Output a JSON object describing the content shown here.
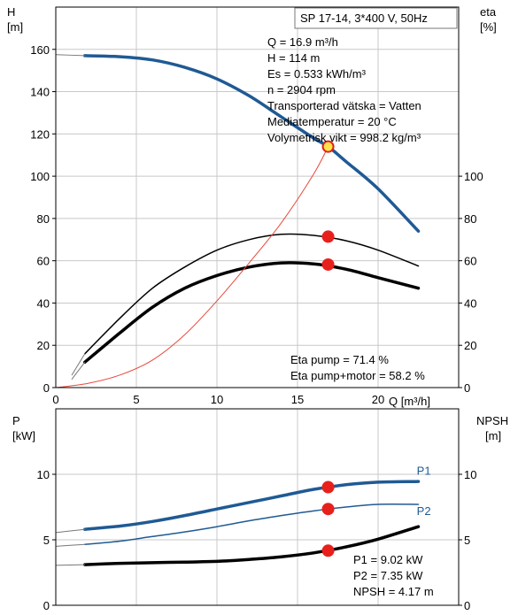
{
  "chart_data": [
    {
      "type": "line",
      "title": "SP 17-14, 3*400 V, 50Hz",
      "left_axis": {
        "label": "H",
        "unit": "[m]",
        "ylim": [
          0,
          180
        ],
        "ticks": [
          "0",
          "20",
          "40",
          "60",
          "80",
          "100",
          "120",
          "140",
          "160"
        ]
      },
      "right_axis": {
        "label": "eta",
        "unit": "[%]",
        "ylim": [
          0,
          180
        ],
        "ticks": [
          "0",
          "20",
          "40",
          "60",
          "80",
          "100"
        ]
      },
      "x_axis": {
        "label": "Q [m³/h]",
        "xlim": [
          0,
          25
        ],
        "ticks": [
          "0",
          "5",
          "10",
          "15",
          "20"
        ]
      },
      "grid": true,
      "operating_info": [
        "Q = 16.9 m³/h",
        "H = 114 m",
        "Es = 0.533 kWh/m³",
        "n = 2904 rpm",
        "Transporterad vätska = Vatten",
        "Mediatemperatur = 20 °C",
        "Volymetrisk vikt = 998.2 kg/m³"
      ],
      "eta_info": [
        "Eta pump = 71.4 %",
        "Eta pump+motor = 58.2 %"
      ],
      "series": [
        {
          "key": "H",
          "axis": "left",
          "color": "#1f5a94",
          "width": 3.5,
          "x": [
            1.8,
            4,
            6,
            8,
            10,
            12,
            14,
            16,
            16.9,
            18,
            20,
            22.5
          ],
          "y": [
            157,
            156.5,
            155,
            151.5,
            146,
            138,
            128,
            118,
            114,
            107,
            94,
            74
          ]
        },
        {
          "key": "H_ext",
          "axis": "left",
          "color": "#777777",
          "width": 1,
          "x": [
            0,
            1.8
          ],
          "y": [
            157.5,
            157
          ]
        },
        {
          "key": "eta_pump",
          "axis": "right",
          "color": "#000000",
          "width": 1.5,
          "x": [
            1.8,
            4,
            6,
            8,
            10,
            12,
            14,
            16,
            18,
            20,
            22.5
          ],
          "y": [
            16,
            33,
            47,
            57,
            65,
            70,
            72.5,
            72,
            69.5,
            65,
            57.5
          ]
        },
        {
          "key": "eta_pump_motor",
          "axis": "right",
          "color": "#000000",
          "width": 3.5,
          "x": [
            1.8,
            4,
            6,
            8,
            10,
            12,
            14,
            16,
            18,
            20,
            22.5
          ],
          "y": [
            12,
            26,
            38,
            47,
            53,
            57,
            59,
            58.5,
            56,
            52,
            47
          ]
        },
        {
          "key": "eta_ext_1",
          "axis": "right",
          "color": "#777777",
          "width": 1,
          "x": [
            1,
            1.8
          ],
          "y": [
            6,
            16
          ]
        },
        {
          "key": "eta_ext_2",
          "axis": "right",
          "color": "#777777",
          "width": 1,
          "x": [
            1,
            1.8
          ],
          "y": [
            4,
            12
          ]
        },
        {
          "key": "system",
          "axis": "left",
          "color": "#e8483a",
          "width": 1,
          "x": [
            0,
            2,
            4,
            6,
            8,
            10,
            12,
            14,
            16,
            16.9
          ],
          "y": [
            0,
            2,
            6,
            13,
            25,
            41,
            59,
            78,
            101,
            114
          ]
        }
      ],
      "operating_points": [
        {
          "x": 16.9,
          "y": 114,
          "axis": "left",
          "fill": "#ffe34a",
          "stroke": "#e0201a",
          "r": 6
        },
        {
          "x": 16.9,
          "y": 71.4,
          "axis": "right",
          "fill": "#e8201c",
          "stroke": "#e8201c",
          "r": 6
        },
        {
          "x": 16.9,
          "y": 58.2,
          "axis": "right",
          "fill": "#e8201c",
          "stroke": "#e8201c",
          "r": 6
        }
      ]
    },
    {
      "type": "line",
      "left_axis": {
        "label": "P",
        "unit": "[kW]",
        "ylim": [
          0,
          15
        ],
        "ticks": [
          "0",
          "5",
          "10"
        ]
      },
      "right_axis": {
        "label": "NPSH",
        "unit": "[m]",
        "ylim": [
          0,
          15
        ],
        "ticks": [
          "0",
          "5",
          "10"
        ]
      },
      "x_axis": {
        "xlim": [
          0,
          25
        ]
      },
      "grid": true,
      "power_info": [
        "P1 = 9.02 kW",
        "P2 = 7.35 kW",
        "NPSH = 4.17 m"
      ],
      "series": [
        {
          "key": "P1",
          "name": "P1",
          "axis": "left",
          "color": "#1f5a94",
          "width": 3.5,
          "x": [
            1.8,
            4,
            6,
            8,
            10,
            12,
            14,
            16,
            18,
            20,
            22.5
          ],
          "y": [
            5.8,
            6.05,
            6.4,
            6.85,
            7.35,
            7.85,
            8.35,
            8.85,
            9.2,
            9.4,
            9.45
          ]
        },
        {
          "key": "P1_ext",
          "axis": "left",
          "color": "#777777",
          "width": 1,
          "x": [
            0,
            1.8
          ],
          "y": [
            5.55,
            5.8
          ]
        },
        {
          "key": "P2",
          "name": "P2",
          "axis": "left",
          "color": "#1f5a94",
          "width": 1.5,
          "x": [
            1.8,
            4,
            6,
            8,
            10,
            12,
            14,
            16,
            18,
            20,
            22.5
          ],
          "y": [
            4.65,
            4.9,
            5.25,
            5.6,
            6.0,
            6.45,
            6.85,
            7.2,
            7.5,
            7.7,
            7.7
          ]
        },
        {
          "key": "P2_ext",
          "axis": "left",
          "color": "#777777",
          "width": 1,
          "x": [
            0,
            1.8
          ],
          "y": [
            4.5,
            4.65
          ]
        },
        {
          "key": "NPSH",
          "axis": "right",
          "color": "#000000",
          "width": 3.5,
          "x": [
            1.8,
            4,
            6,
            8,
            10,
            12,
            14,
            16,
            18,
            20,
            22.5
          ],
          "y": [
            3.1,
            3.2,
            3.25,
            3.3,
            3.35,
            3.5,
            3.7,
            4.0,
            4.45,
            5.05,
            6.0
          ]
        },
        {
          "key": "NPSH_ext",
          "axis": "right",
          "color": "#777777",
          "width": 1,
          "x": [
            0,
            1.8
          ],
          "y": [
            3.05,
            3.1
          ]
        }
      ],
      "series_labels": [
        {
          "text": "P1",
          "x": 22.4,
          "y": 9.95,
          "color": "#1f5a94"
        },
        {
          "text": "P2",
          "x": 22.4,
          "y": 6.9,
          "color": "#1f5a94"
        }
      ],
      "operating_points": [
        {
          "x": 16.9,
          "y": 9.02,
          "axis": "left",
          "fill": "#e8201c",
          "stroke": "#e8201c",
          "r": 6
        },
        {
          "x": 16.9,
          "y": 7.35,
          "axis": "left",
          "fill": "#e8201c",
          "stroke": "#e8201c",
          "r": 6
        },
        {
          "x": 16.9,
          "y": 4.17,
          "axis": "right",
          "fill": "#e8201c",
          "stroke": "#e8201c",
          "r": 6
        }
      ]
    }
  ]
}
